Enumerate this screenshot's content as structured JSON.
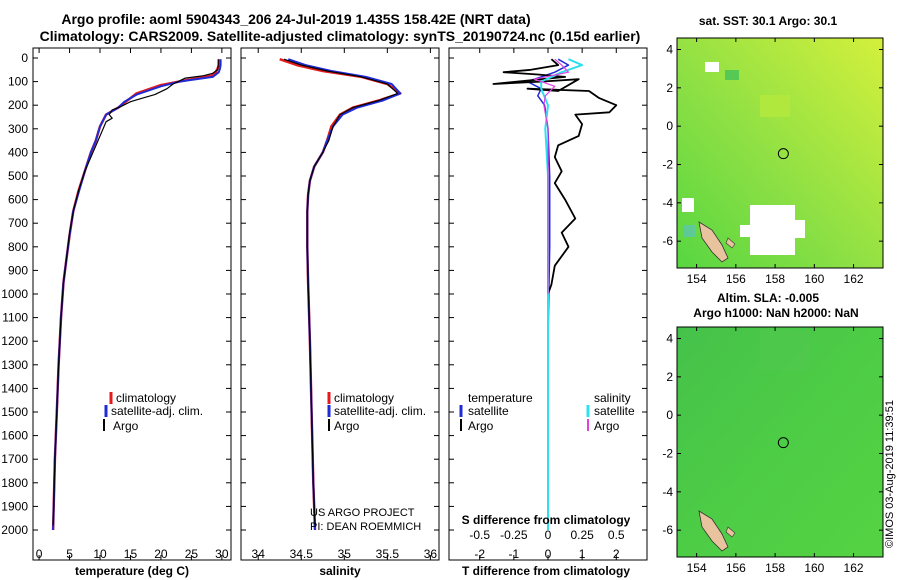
{
  "header": {
    "line1": "Argo profile: aoml 5904343_206 24-Jul-2019 1.435S 158.42E (NRT data)",
    "line2": "Climatology: CARS2009. Satellite-adjusted climatology: synTS_20190724.nc (0.15d earlier)"
  },
  "colors": {
    "climatology": "#e41a1c",
    "satellite": "#1f2bd6",
    "argo": "#000000",
    "sat_salinity": "#2fe0f0",
    "argo_salinity": "#e040e0",
    "land": "#e8c39e"
  },
  "depth_ticks": [
    "0",
    "100",
    "200",
    "300",
    "400",
    "500",
    "600",
    "700",
    "800",
    "900",
    "1000",
    "1100",
    "1200",
    "1300",
    "1400",
    "1500",
    "1600",
    "1700",
    "1800",
    "1900",
    "2000"
  ],
  "chart_data": [
    {
      "type": "line",
      "name": "temperature",
      "xlabel": "temperature (deg C)",
      "xticks": [
        "0",
        "5",
        "10",
        "15",
        "20",
        "25",
        "30"
      ],
      "xlim": [
        -1,
        31.5
      ],
      "ylim": [
        2050,
        0
      ],
      "legend": [
        "climatology",
        "satellite-adj. clim.",
        "Argo"
      ],
      "series": [
        {
          "name": "climatology",
          "values": [
            [
              29.6,
              5
            ],
            [
              29.5,
              30
            ],
            [
              29.3,
              45
            ],
            [
              29,
              60
            ],
            [
              28.3,
              75
            ],
            [
              24,
              95
            ],
            [
              20,
              115
            ],
            [
              16,
              150
            ],
            [
              14,
              190
            ],
            [
              13,
              210
            ],
            [
              11,
              240
            ],
            [
              10,
              290
            ],
            [
              9.3,
              350
            ],
            [
              8.5,
              400
            ],
            [
              7.5,
              480
            ],
            [
              6.5,
              560
            ],
            [
              5.6,
              650
            ],
            [
              5,
              750
            ],
            [
              4.5,
              850
            ],
            [
              4,
              950
            ],
            [
              3.6,
              1100
            ],
            [
              3.2,
              1300
            ],
            [
              2.9,
              1500
            ],
            [
              2.6,
              1700
            ],
            [
              2.4,
              1900
            ],
            [
              2.3,
              2000
            ]
          ]
        },
        {
          "name": "satellite-adj. clim.",
          "values": [
            [
              29.8,
              5
            ],
            [
              29.8,
              30
            ],
            [
              29.7,
              45
            ],
            [
              29.5,
              60
            ],
            [
              28.5,
              80
            ],
            [
              23,
              100
            ],
            [
              20,
              120
            ],
            [
              16,
              155
            ],
            [
              14,
              185
            ],
            [
              13,
              210
            ],
            [
              11,
              240
            ],
            [
              10,
              290
            ],
            [
              9.3,
              350
            ],
            [
              8.5,
              400
            ],
            [
              7.5,
              480
            ],
            [
              6.6,
              560
            ],
            [
              5.6,
              650
            ],
            [
              5,
              750
            ],
            [
              4.5,
              850
            ],
            [
              4,
              950
            ],
            [
              3.6,
              1100
            ],
            [
              3.2,
              1300
            ],
            [
              2.9,
              1500
            ],
            [
              2.6,
              1700
            ],
            [
              2.4,
              1900
            ],
            [
              2.3,
              2000
            ]
          ]
        },
        {
          "name": "Argo",
          "values": [
            [
              29.4,
              5
            ],
            [
              29.4,
              30
            ],
            [
              29.3,
              50
            ],
            [
              28.5,
              65
            ],
            [
              27,
              75
            ],
            [
              24,
              85
            ],
            [
              22,
              110
            ],
            [
              21,
              130
            ],
            [
              19,
              155
            ],
            [
              17,
              170
            ],
            [
              15,
              185
            ],
            [
              13.5,
              205
            ],
            [
              12,
              220
            ],
            [
              11.5,
              240
            ],
            [
              12,
              255
            ],
            [
              11,
              270
            ],
            [
              10.5,
              300
            ],
            [
              9.5,
              360
            ],
            [
              8.5,
              420
            ],
            [
              7.5,
              480
            ],
            [
              6.5,
              560
            ],
            [
              5.7,
              640
            ],
            [
              5,
              740
            ],
            [
              4.5,
              850
            ],
            [
              4,
              950
            ],
            [
              3.6,
              1100
            ],
            [
              3.2,
              1300
            ],
            [
              2.9,
              1500
            ],
            [
              2.6,
              1700
            ],
            [
              2.4,
              1900
            ],
            [
              2.3,
              1980
            ]
          ]
        }
      ]
    },
    {
      "type": "line",
      "name": "salinity",
      "xlabel": "salinity",
      "xticks": [
        "34",
        "34.5",
        "35",
        "35.5",
        "36"
      ],
      "xlim": [
        33.8,
        36.1
      ],
      "ylim": [
        2050,
        0
      ],
      "legend": [
        "climatology",
        "satellite-adj. clim.",
        "Argo"
      ],
      "notes": [
        "US ARGO PROJECT",
        "PI: DEAN ROEMMICH"
      ],
      "series": [
        {
          "name": "climatology",
          "values": [
            [
              34.25,
              5
            ],
            [
              34.45,
              30
            ],
            [
              34.75,
              55
            ],
            [
              35.2,
              80
            ],
            [
              35.5,
              110
            ],
            [
              35.65,
              150
            ],
            [
              35.4,
              180
            ],
            [
              35.1,
              210
            ],
            [
              34.95,
              240
            ],
            [
              34.85,
              290
            ],
            [
              34.8,
              350
            ],
            [
              34.75,
              400
            ],
            [
              34.65,
              460
            ],
            [
              34.6,
              520
            ],
            [
              34.58,
              580
            ],
            [
              34.57,
              650
            ],
            [
              34.57,
              700
            ],
            [
              34.57,
              800
            ],
            [
              34.58,
              950
            ],
            [
              34.6,
              1200
            ],
            [
              34.62,
              1500
            ],
            [
              34.64,
              1800
            ],
            [
              34.66,
              2000
            ]
          ]
        },
        {
          "name": "satellite-adj. clim.",
          "values": [
            [
              34.35,
              5
            ],
            [
              34.55,
              30
            ],
            [
              34.85,
              55
            ],
            [
              35.25,
              80
            ],
            [
              35.55,
              110
            ],
            [
              35.65,
              150
            ],
            [
              35.45,
              180
            ],
            [
              35.15,
              210
            ],
            [
              34.98,
              240
            ],
            [
              34.87,
              290
            ],
            [
              34.8,
              350
            ],
            [
              34.75,
              400
            ],
            [
              34.65,
              460
            ],
            [
              34.6,
              520
            ],
            [
              34.58,
              580
            ],
            [
              34.57,
              650
            ],
            [
              34.57,
              700
            ],
            [
              34.57,
              800
            ],
            [
              34.58,
              950
            ],
            [
              34.6,
              1200
            ],
            [
              34.62,
              1500
            ],
            [
              34.64,
              1800
            ],
            [
              34.66,
              2000
            ]
          ]
        },
        {
          "name": "Argo",
          "values": [
            [
              34.3,
              5
            ],
            [
              34.5,
              30
            ],
            [
              34.8,
              55
            ],
            [
              35.2,
              80
            ],
            [
              35.5,
              110
            ],
            [
              35.62,
              150
            ],
            [
              35.4,
              180
            ],
            [
              35.1,
              210
            ],
            [
              34.95,
              240
            ],
            [
              34.87,
              290
            ],
            [
              34.82,
              350
            ],
            [
              34.75,
              400
            ],
            [
              34.65,
              460
            ],
            [
              34.6,
              520
            ],
            [
              34.58,
              580
            ],
            [
              34.57,
              650
            ],
            [
              34.57,
              700
            ],
            [
              34.57,
              800
            ],
            [
              34.58,
              950
            ],
            [
              34.6,
              1200
            ],
            [
              34.62,
              1500
            ],
            [
              34.64,
              1800
            ],
            [
              34.66,
              1980
            ]
          ]
        }
      ]
    },
    {
      "type": "line",
      "name": "differences",
      "xlabel": "T difference from climatology",
      "xlabel_top": "S difference from climatology",
      "xticks": [
        "-2",
        "-1",
        "0",
        "1",
        "2"
      ],
      "xlim": [
        -2.9,
        2.9
      ],
      "xticks_top": [
        "-0.5",
        "-0.25",
        "0",
        "0.25",
        "0.5"
      ],
      "ylim": [
        2050,
        0
      ],
      "legend_left_title": "temperature",
      "legend_left": [
        "satellite",
        "Argo"
      ],
      "legend_right_title": "salinity",
      "legend_right": [
        "satellite",
        "Argo"
      ],
      "series": [
        {
          "name": "T satellite",
          "values": [
            [
              0.3,
              5
            ],
            [
              0.6,
              30
            ],
            [
              0.2,
              60
            ],
            [
              -0.6,
              100
            ],
            [
              -0.2,
              130
            ],
            [
              -0.3,
              160
            ],
            [
              -0.1,
              200
            ],
            [
              0,
              300
            ],
            [
              0.05,
              500
            ],
            [
              0.05,
              800
            ],
            [
              0,
              1200
            ],
            [
              0,
              2000
            ]
          ]
        },
        {
          "name": "T Argo",
          "values": [
            [
              0.1,
              5
            ],
            [
              0.3,
              30
            ],
            [
              -0.5,
              50
            ],
            [
              -1.3,
              60
            ],
            [
              -0.3,
              70
            ],
            [
              0.5,
              80
            ],
            [
              -1.6,
              110
            ],
            [
              -0.2,
              100
            ],
            [
              0.9,
              90
            ],
            [
              0.3,
              140
            ],
            [
              -0.6,
              130
            ],
            [
              1.2,
              140
            ],
            [
              1.5,
              170
            ],
            [
              2,
              200
            ],
            [
              1.8,
              230
            ],
            [
              0.8,
              240
            ],
            [
              1,
              280
            ],
            [
              0.9,
              330
            ],
            [
              0.3,
              370
            ],
            [
              0.2,
              420
            ],
            [
              0.4,
              480
            ],
            [
              0.2,
              530
            ],
            [
              0.5,
              600
            ],
            [
              0.8,
              680
            ],
            [
              0.4,
              740
            ],
            [
              0.6,
              800
            ],
            [
              0.2,
              880
            ],
            [
              0.1,
              960
            ],
            [
              0,
              1000
            ]
          ]
        },
        {
          "name": "S satellite",
          "values": [
            [
              0.15,
              5
            ],
            [
              0.25,
              30
            ],
            [
              0.1,
              60
            ],
            [
              -0.05,
              100
            ],
            [
              -0.05,
              130
            ],
            [
              0,
              200
            ],
            [
              -0.02,
              300
            ],
            [
              0,
              500
            ],
            [
              0,
              900
            ],
            [
              0,
              1400
            ],
            [
              0,
              2000
            ]
          ]
        },
        {
          "name": "S Argo",
          "values": [
            [
              0.05,
              5
            ],
            [
              0.1,
              30
            ],
            [
              0.15,
              60
            ],
            [
              -0.1,
              90
            ],
            [
              0.05,
              120
            ],
            [
              -0.02,
              160
            ],
            [
              -0.03,
              200
            ],
            [
              0,
              300
            ],
            [
              0,
              500
            ],
            [
              0,
              1000
            ]
          ]
        }
      ]
    },
    {
      "type": "heatmap",
      "name": "sst-map",
      "title": "sat. SST: 30.1 Argo: 30.1",
      "xticks": [
        "154",
        "156",
        "158",
        "160",
        "162"
      ],
      "yticks": [
        "4",
        "2",
        "0",
        "-2",
        "-4",
        "-6"
      ],
      "xlim": [
        153,
        163.5
      ],
      "ylim": [
        -7.4,
        4.6
      ],
      "marker": {
        "lon": 158.42,
        "lat": -1.435
      }
    },
    {
      "type": "heatmap",
      "name": "sla-map",
      "title_line1": "Altim. SLA: -0.005",
      "title_line2": "Argo h1000: NaN h2000: NaN",
      "xticks": [
        "154",
        "156",
        "158",
        "160",
        "162"
      ],
      "yticks": [
        "4",
        "2",
        "0",
        "-2",
        "-4",
        "-6"
      ],
      "xlim": [
        153,
        163.5
      ],
      "ylim": [
        -7.4,
        4.6
      ],
      "marker": {
        "lon": 158.42,
        "lat": -1.435
      }
    }
  ],
  "footer": {
    "stamp": "©IMOS 03-Aug-2019 11:39:51"
  }
}
